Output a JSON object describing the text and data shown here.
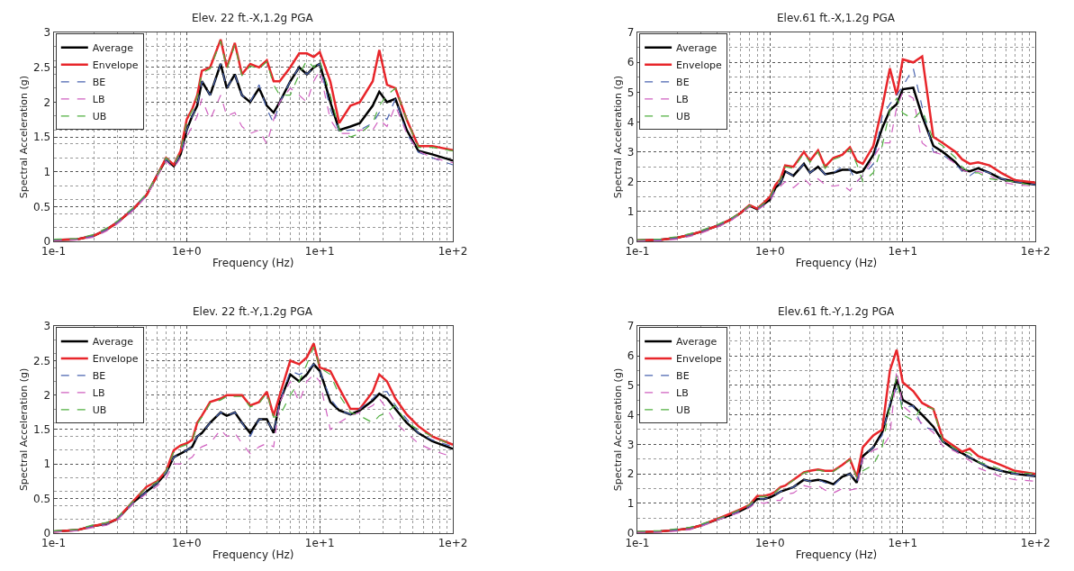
{
  "chart_data": [
    {
      "type": "line",
      "title": "Elev. 22 ft.-X,1.2g PGA",
      "xlabel": "Frequency (Hz)",
      "ylabel": "Spectral Acceleration (g)",
      "log": "x",
      "grid": true,
      "legend": "top left",
      "xlim": [
        0.1,
        100
      ],
      "xticks": [
        {
          "value": 0.1,
          "label": "1e-1"
        },
        {
          "value": 1,
          "label": "1e+0"
        },
        {
          "value": 10,
          "label": "1e+1"
        },
        {
          "value": 100,
          "label": "1e+2"
        }
      ],
      "ylim": [
        0,
        3
      ],
      "yticks": [
        0,
        0.5,
        1,
        1.5,
        2,
        2.5,
        3
      ],
      "x": [
        0.1,
        0.15,
        0.2,
        0.25,
        0.3,
        0.4,
        0.5,
        0.6,
        0.7,
        0.8,
        0.9,
        1,
        1.1,
        1.2,
        1.3,
        1.5,
        1.8,
        2,
        2.3,
        2.6,
        3,
        3.5,
        4,
        4.5,
        5,
        6,
        7,
        8,
        9,
        10,
        12,
        14,
        17,
        20,
        25,
        28,
        32,
        37,
        45,
        55,
        70,
        100
      ],
      "series": [
        {
          "name": "Average",
          "color": "#000000",
          "line_style": "solid",
          "values": [
            0.02,
            0.03,
            0.08,
            0.17,
            0.27,
            0.47,
            0.67,
            0.95,
            1.18,
            1.08,
            1.25,
            1.6,
            1.8,
            1.95,
            2.3,
            2.1,
            2.55,
            2.2,
            2.4,
            2.1,
            2.0,
            2.2,
            1.95,
            1.85,
            2.0,
            2.3,
            2.5,
            2.4,
            2.5,
            2.55,
            2.0,
            1.6,
            1.65,
            1.7,
            1.95,
            2.15,
            2.0,
            2.05,
            1.6,
            1.3,
            1.25,
            1.16
          ]
        },
        {
          "name": "Envelope",
          "color": "#e8262b",
          "line_style": "solid",
          "values": [
            0.02,
            0.03,
            0.08,
            0.17,
            0.27,
            0.47,
            0.67,
            0.95,
            1.2,
            1.1,
            1.3,
            1.75,
            1.9,
            2.1,
            2.45,
            2.5,
            2.9,
            2.5,
            2.85,
            2.4,
            2.55,
            2.5,
            2.6,
            2.3,
            2.3,
            2.5,
            2.7,
            2.7,
            2.65,
            2.72,
            2.3,
            1.7,
            1.95,
            2.0,
            2.3,
            2.75,
            2.25,
            2.2,
            1.75,
            1.37,
            1.37,
            1.31
          ]
        },
        {
          "name": "BE",
          "color": "#4a64b0",
          "line_style": "dashed",
          "values": [
            0.02,
            0.03,
            0.08,
            0.17,
            0.27,
            0.47,
            0.67,
            0.95,
            1.18,
            1.08,
            1.25,
            1.6,
            1.8,
            1.95,
            2.3,
            2.1,
            2.55,
            2.2,
            2.4,
            2.1,
            2.0,
            2.25,
            1.9,
            1.7,
            2.0,
            2.3,
            2.5,
            2.4,
            2.5,
            2.55,
            1.9,
            1.58,
            1.6,
            1.6,
            1.7,
            1.85,
            1.75,
            2.05,
            1.55,
            1.28,
            1.2,
            1.1
          ]
        },
        {
          "name": "LB",
          "color": "#d060c0",
          "line_style": "dashed",
          "values": [
            0.01,
            0.02,
            0.06,
            0.15,
            0.25,
            0.45,
            0.65,
            0.93,
            1.15,
            1.05,
            1.2,
            1.5,
            1.65,
            1.8,
            2.05,
            1.75,
            2.1,
            1.8,
            1.85,
            1.65,
            1.55,
            1.6,
            1.4,
            1.75,
            2.0,
            2.2,
            2.1,
            2.0,
            2.3,
            2.45,
            1.75,
            1.55,
            1.55,
            1.6,
            1.6,
            1.75,
            1.65,
            1.95,
            1.55,
            1.3,
            1.2,
            1.13
          ]
        },
        {
          "name": "UB",
          "color": "#50b040",
          "line_style": "dashed",
          "values": [
            0.03,
            0.04,
            0.1,
            0.19,
            0.29,
            0.49,
            0.69,
            0.95,
            1.2,
            1.1,
            1.3,
            1.72,
            1.88,
            2.08,
            2.42,
            2.48,
            2.88,
            2.48,
            2.82,
            2.38,
            2.52,
            2.48,
            2.58,
            2.25,
            2.1,
            2.1,
            2.4,
            2.6,
            2.5,
            2.6,
            2.1,
            1.6,
            1.5,
            1.55,
            1.7,
            1.95,
            2.1,
            2.2,
            1.75,
            1.35,
            1.35,
            1.3
          ]
        }
      ]
    },
    {
      "type": "line",
      "title": "Elev.61 ft.-X,1.2g PGA",
      "xlabel": "Frequency (Hz)",
      "ylabel": "Spectral Acceleration (g)",
      "log": "x",
      "grid": true,
      "legend": "top left",
      "xlim": [
        0.1,
        100
      ],
      "xticks": [
        {
          "value": 0.1,
          "label": "1e-1"
        },
        {
          "value": 1,
          "label": "1e+0"
        },
        {
          "value": 10,
          "label": "1e+1"
        },
        {
          "value": 100,
          "label": "1e+2"
        }
      ],
      "ylim": [
        0,
        7
      ],
      "yticks": [
        0,
        1,
        2,
        3,
        4,
        5,
        6,
        7
      ],
      "x": [
        0.1,
        0.15,
        0.2,
        0.25,
        0.3,
        0.4,
        0.5,
        0.6,
        0.7,
        0.8,
        0.9,
        1,
        1.1,
        1.2,
        1.3,
        1.5,
        1.8,
        2,
        2.3,
        2.6,
        3,
        3.5,
        4,
        4.5,
        5,
        6,
        7,
        8,
        9,
        10,
        12,
        14,
        17,
        20,
        25,
        28,
        32,
        37,
        45,
        55,
        70,
        100
      ],
      "series": [
        {
          "name": "Average",
          "color": "#000000",
          "line_style": "solid",
          "values": [
            0.03,
            0.05,
            0.12,
            0.22,
            0.32,
            0.52,
            0.72,
            0.95,
            1.2,
            1.08,
            1.25,
            1.4,
            1.8,
            1.95,
            2.35,
            2.2,
            2.6,
            2.3,
            2.5,
            2.25,
            2.3,
            2.4,
            2.4,
            2.3,
            2.35,
            2.9,
            3.8,
            4.4,
            4.6,
            5.1,
            5.15,
            4.2,
            3.2,
            3.0,
            2.65,
            2.4,
            2.35,
            2.45,
            2.3,
            2.1,
            2.0,
            1.9
          ]
        },
        {
          "name": "Envelope",
          "color": "#e8262b",
          "line_style": "solid",
          "values": [
            0.03,
            0.05,
            0.12,
            0.22,
            0.32,
            0.52,
            0.72,
            0.95,
            1.22,
            1.1,
            1.3,
            1.5,
            1.9,
            2.1,
            2.55,
            2.5,
            3.0,
            2.7,
            3.05,
            2.5,
            2.8,
            2.9,
            3.15,
            2.7,
            2.6,
            3.2,
            4.5,
            5.8,
            4.9,
            6.1,
            6.0,
            6.2,
            3.5,
            3.3,
            3.0,
            2.75,
            2.6,
            2.65,
            2.55,
            2.3,
            2.05,
            1.97
          ]
        },
        {
          "name": "BE",
          "color": "#4a64b0",
          "line_style": "dashed",
          "values": [
            0.03,
            0.05,
            0.12,
            0.22,
            0.32,
            0.52,
            0.72,
            0.95,
            1.2,
            1.08,
            1.25,
            1.4,
            1.8,
            1.95,
            2.35,
            2.2,
            2.6,
            2.3,
            2.5,
            2.25,
            2.3,
            2.5,
            2.4,
            2.0,
            2.2,
            2.6,
            4.2,
            4.6,
            4.9,
            5.2,
            5.8,
            4.5,
            3.0,
            2.9,
            2.6,
            2.35,
            2.2,
            2.4,
            2.3,
            2.1,
            2.0,
            1.9
          ]
        },
        {
          "name": "LB",
          "color": "#d060c0",
          "line_style": "dashed",
          "values": [
            0.01,
            0.02,
            0.07,
            0.17,
            0.27,
            0.47,
            0.67,
            0.93,
            1.15,
            1.05,
            1.2,
            1.35,
            1.7,
            1.85,
            2.0,
            1.8,
            2.1,
            1.9,
            2.1,
            1.9,
            1.85,
            1.9,
            1.7,
            2.0,
            2.2,
            2.8,
            3.3,
            3.3,
            4.5,
            5.0,
            4.8,
            3.3,
            3.0,
            2.9,
            2.6,
            2.4,
            2.3,
            2.35,
            2.2,
            2.0,
            1.9,
            1.85
          ]
        },
        {
          "name": "UB",
          "color": "#50b040",
          "line_style": "dashed",
          "values": [
            0.05,
            0.08,
            0.16,
            0.26,
            0.36,
            0.56,
            0.76,
            0.95,
            1.2,
            1.1,
            1.28,
            1.48,
            1.88,
            2.08,
            2.5,
            2.45,
            2.95,
            2.65,
            3.0,
            2.45,
            2.75,
            2.85,
            3.1,
            2.6,
            2.0,
            2.3,
            3.2,
            4.4,
            4.8,
            4.3,
            4.1,
            4.4,
            3.4,
            3.2,
            2.8,
            2.5,
            2.3,
            2.3,
            2.1,
            2.05,
            2.0,
            1.85
          ]
        }
      ]
    },
    {
      "type": "line",
      "title": "Elev. 22 ft.-Y,1.2g PGA",
      "xlabel": "Frequency (Hz)",
      "ylabel": "Spectral Acceleration (g)",
      "log": "x",
      "grid": true,
      "legend": "top left",
      "xlim": [
        0.1,
        100
      ],
      "xticks": [
        {
          "value": 0.1,
          "label": "1e-1"
        },
        {
          "value": 1,
          "label": "1e+0"
        },
        {
          "value": 10,
          "label": "1e+1"
        },
        {
          "value": 100,
          "label": "1e+2"
        }
      ],
      "ylim": [
        0,
        3
      ],
      "yticks": [
        0,
        0.5,
        1,
        1.5,
        2,
        2.5,
        3
      ],
      "x": [
        0.1,
        0.15,
        0.2,
        0.25,
        0.3,
        0.4,
        0.5,
        0.6,
        0.7,
        0.8,
        0.9,
        1,
        1.1,
        1.2,
        1.3,
        1.5,
        1.8,
        2,
        2.3,
        2.6,
        3,
        3.5,
        4,
        4.5,
        5,
        6,
        7,
        8,
        9,
        10,
        12,
        14,
        17,
        20,
        25,
        28,
        32,
        37,
        45,
        55,
        70,
        100
      ],
      "series": [
        {
          "name": "Average",
          "color": "#000000",
          "line_style": "solid",
          "values": [
            0.02,
            0.04,
            0.1,
            0.13,
            0.2,
            0.45,
            0.6,
            0.72,
            0.87,
            1.1,
            1.15,
            1.2,
            1.25,
            1.4,
            1.45,
            1.6,
            1.75,
            1.7,
            1.75,
            1.6,
            1.45,
            1.65,
            1.65,
            1.45,
            1.9,
            2.3,
            2.2,
            2.3,
            2.45,
            2.35,
            1.9,
            1.78,
            1.72,
            1.78,
            1.92,
            2.02,
            1.95,
            1.8,
            1.6,
            1.45,
            1.33,
            1.22
          ]
        },
        {
          "name": "Envelope",
          "color": "#e8262b",
          "line_style": "solid",
          "values": [
            0.02,
            0.04,
            0.1,
            0.14,
            0.2,
            0.47,
            0.67,
            0.75,
            0.9,
            1.2,
            1.27,
            1.3,
            1.35,
            1.6,
            1.7,
            1.9,
            1.95,
            2.0,
            2.0,
            2.0,
            1.85,
            1.9,
            2.05,
            1.7,
            2.0,
            2.5,
            2.45,
            2.55,
            2.75,
            2.4,
            2.35,
            2.1,
            1.8,
            1.8,
            2.05,
            2.3,
            2.2,
            1.95,
            1.72,
            1.55,
            1.4,
            1.28
          ]
        },
        {
          "name": "BE",
          "color": "#4a64b0",
          "line_style": "dashed",
          "values": [
            0.02,
            0.04,
            0.1,
            0.13,
            0.2,
            0.45,
            0.6,
            0.72,
            0.87,
            1.1,
            1.15,
            1.2,
            1.25,
            1.4,
            1.45,
            1.6,
            1.75,
            1.7,
            1.75,
            1.6,
            1.4,
            1.65,
            1.65,
            1.45,
            1.9,
            2.35,
            2.3,
            2.35,
            2.45,
            2.35,
            1.95,
            1.78,
            1.72,
            1.8,
            1.95,
            2.05,
            2.05,
            1.85,
            1.65,
            1.45,
            1.35,
            1.25
          ]
        },
        {
          "name": "LB",
          "color": "#d060c0",
          "line_style": "dashed",
          "values": [
            0.01,
            0.03,
            0.08,
            0.11,
            0.18,
            0.43,
            0.57,
            0.68,
            0.8,
            1.0,
            1.0,
            1.05,
            1.1,
            1.2,
            1.25,
            1.3,
            1.5,
            1.4,
            1.45,
            1.3,
            1.15,
            1.25,
            1.3,
            1.25,
            1.9,
            2.2,
            1.9,
            2.2,
            2.3,
            2.2,
            1.5,
            1.6,
            1.7,
            1.75,
            1.85,
            1.95,
            1.8,
            1.6,
            1.45,
            1.3,
            1.2,
            1.1
          ]
        },
        {
          "name": "UB",
          "color": "#50b040",
          "line_style": "dashed",
          "values": [
            0.03,
            0.05,
            0.12,
            0.15,
            0.22,
            0.47,
            0.66,
            0.74,
            0.9,
            1.18,
            1.25,
            1.28,
            1.33,
            1.58,
            1.68,
            1.88,
            1.93,
            1.98,
            1.98,
            1.98,
            1.83,
            1.88,
            2.03,
            1.68,
            1.7,
            2.0,
            2.2,
            2.45,
            2.7,
            2.4,
            2.3,
            2.0,
            1.75,
            1.7,
            1.6,
            1.7,
            1.75,
            1.85,
            1.6,
            1.5,
            1.4,
            1.27
          ]
        }
      ]
    },
    {
      "type": "line",
      "title": "Elev.61 ft.-Y,1.2g PGA",
      "xlabel": "Frequency (Hz)",
      "ylabel": "Spectral Acceleration (g)",
      "log": "x",
      "grid": true,
      "legend": "top left",
      "xlim": [
        0.1,
        100
      ],
      "xticks": [
        {
          "value": 0.1,
          "label": "1e-1"
        },
        {
          "value": 1,
          "label": "1e+0"
        },
        {
          "value": 10,
          "label": "1e+1"
        },
        {
          "value": 100,
          "label": "1e+2"
        }
      ],
      "ylim": [
        0,
        7
      ],
      "yticks": [
        0,
        1,
        2,
        3,
        4,
        5,
        6,
        7
      ],
      "x": [
        0.1,
        0.15,
        0.2,
        0.25,
        0.3,
        0.4,
        0.5,
        0.6,
        0.7,
        0.8,
        0.9,
        1,
        1.1,
        1.2,
        1.3,
        1.5,
        1.8,
        2,
        2.3,
        2.6,
        3,
        3.5,
        4,
        4.5,
        5,
        6,
        7,
        8,
        9,
        10,
        12,
        14,
        17,
        20,
        25,
        28,
        32,
        37,
        45,
        55,
        70,
        100
      ],
      "series": [
        {
          "name": "Average",
          "color": "#000000",
          "line_style": "solid",
          "values": [
            0.02,
            0.05,
            0.1,
            0.15,
            0.25,
            0.45,
            0.6,
            0.75,
            0.9,
            1.15,
            1.15,
            1.2,
            1.3,
            1.4,
            1.45,
            1.55,
            1.8,
            1.75,
            1.8,
            1.75,
            1.65,
            1.9,
            2.0,
            1.7,
            2.6,
            2.9,
            3.4,
            4.3,
            5.2,
            4.5,
            4.3,
            4.0,
            3.6,
            3.1,
            2.8,
            2.7,
            2.55,
            2.4,
            2.2,
            2.1,
            2.0,
            1.92
          ]
        },
        {
          "name": "Envelope",
          "color": "#e8262b",
          "line_style": "solid",
          "values": [
            0.02,
            0.05,
            0.1,
            0.15,
            0.25,
            0.47,
            0.65,
            0.8,
            0.95,
            1.25,
            1.25,
            1.3,
            1.4,
            1.55,
            1.6,
            1.8,
            2.05,
            2.1,
            2.15,
            2.1,
            2.1,
            2.3,
            2.5,
            1.9,
            2.9,
            3.3,
            3.5,
            5.5,
            6.2,
            5.1,
            4.8,
            4.4,
            4.2,
            3.2,
            2.9,
            2.75,
            2.85,
            2.6,
            2.45,
            2.3,
            2.1,
            2.0
          ]
        },
        {
          "name": "BE",
          "color": "#4a64b0",
          "line_style": "dashed",
          "values": [
            0.02,
            0.05,
            0.1,
            0.15,
            0.25,
            0.45,
            0.6,
            0.75,
            0.9,
            1.15,
            1.15,
            1.2,
            1.3,
            1.4,
            1.45,
            1.55,
            1.8,
            1.75,
            1.8,
            1.7,
            1.6,
            1.9,
            2.0,
            1.7,
            2.6,
            2.9,
            3.3,
            4.4,
            4.9,
            4.25,
            4.3,
            3.6,
            3.5,
            3.1,
            2.8,
            2.7,
            2.55,
            2.4,
            2.2,
            2.1,
            2.0,
            1.92
          ]
        },
        {
          "name": "LB",
          "color": "#d060c0",
          "line_style": "dashed",
          "values": [
            0.01,
            0.02,
            0.06,
            0.11,
            0.21,
            0.43,
            0.58,
            0.7,
            0.85,
            1.05,
            1.0,
            1.05,
            1.1,
            1.1,
            1.3,
            1.35,
            1.6,
            1.55,
            1.6,
            1.45,
            1.35,
            1.5,
            1.45,
            1.5,
            2.5,
            2.8,
            2.9,
            3.3,
            5.5,
            4.3,
            4.0,
            3.7,
            3.4,
            2.95,
            2.75,
            2.6,
            2.45,
            2.2,
            2.05,
            1.9,
            1.8,
            1.75
          ]
        },
        {
          "name": "UB",
          "color": "#50b040",
          "line_style": "dashed",
          "values": [
            0.05,
            0.08,
            0.14,
            0.19,
            0.29,
            0.47,
            0.64,
            0.8,
            0.95,
            1.23,
            1.23,
            1.28,
            1.38,
            1.53,
            1.58,
            1.78,
            2.03,
            2.08,
            2.13,
            2.08,
            2.08,
            2.28,
            2.48,
            1.88,
            2.1,
            2.3,
            2.9,
            4.3,
            5.3,
            4.0,
            3.8,
            4.3,
            4.2,
            3.1,
            2.85,
            2.75,
            2.7,
            2.4,
            2.3,
            2.15,
            2.05,
            2.0
          ]
        }
      ]
    }
  ]
}
